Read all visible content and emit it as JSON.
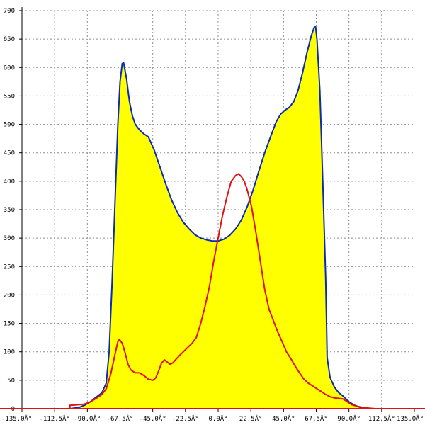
{
  "chart_data": {
    "type": "area",
    "title": "",
    "xlabel": "",
    "ylabel": "",
    "xlim": [
      -135,
      135
    ],
    "ylim": [
      0,
      700
    ],
    "grid": true,
    "x_ticks": [
      {
        "value": -135,
        "label": "-135.0Â°"
      },
      {
        "value": -112.5,
        "label": "-112.5Â°"
      },
      {
        "value": -90,
        "label": "-90.0Â°"
      },
      {
        "value": -67.5,
        "label": "-67.5Â°"
      },
      {
        "value": -45,
        "label": "-45.0Â°"
      },
      {
        "value": -22.5,
        "label": "-22.5Â°"
      },
      {
        "value": 0,
        "label": "0.0Â°"
      },
      {
        "value": 22.5,
        "label": "22.5Â°"
      },
      {
        "value": 45,
        "label": "45.0Â°"
      },
      {
        "value": 67.5,
        "label": "67.5Â°"
      },
      {
        "value": 90,
        "label": "90.0Â°"
      },
      {
        "value": 112.5,
        "label": "112.5Â°"
      },
      {
        "value": 135,
        "label": "135.0Â°"
      }
    ],
    "y_ticks": [
      {
        "value": 0,
        "label": "0"
      },
      {
        "value": 50,
        "label": "50"
      },
      {
        "value": 100,
        "label": "100"
      },
      {
        "value": 150,
        "label": "150"
      },
      {
        "value": 200,
        "label": "200"
      },
      {
        "value": 250,
        "label": "250"
      },
      {
        "value": 300,
        "label": "300"
      },
      {
        "value": 350,
        "label": "350"
      },
      {
        "value": 400,
        "label": "400"
      },
      {
        "value": 450,
        "label": "450"
      },
      {
        "value": 500,
        "label": "500"
      },
      {
        "value": 550,
        "label": "550"
      },
      {
        "value": 600,
        "label": "600"
      },
      {
        "value": 650,
        "label": "650"
      },
      {
        "value": 700,
        "label": "700"
      }
    ],
    "series": [
      {
        "color": "#0a2ab8",
        "fill": "#ffff00",
        "points": [
          [
            -135,
            0
          ],
          [
            -102,
            0
          ],
          [
            -96,
            2
          ],
          [
            -92,
            6
          ],
          [
            -88,
            12
          ],
          [
            -84,
            20
          ],
          [
            -80,
            28
          ],
          [
            -77,
            45
          ],
          [
            -75,
            100
          ],
          [
            -73,
            220
          ],
          [
            -71,
            360
          ],
          [
            -69,
            500
          ],
          [
            -67.5,
            575
          ],
          [
            -66,
            607
          ],
          [
            -65,
            608
          ],
          [
            -63,
            580
          ],
          [
            -61,
            540
          ],
          [
            -59,
            515
          ],
          [
            -57,
            500
          ],
          [
            -54,
            490
          ],
          [
            -51,
            483
          ],
          [
            -48,
            478
          ],
          [
            -44,
            455
          ],
          [
            -40,
            425
          ],
          [
            -36,
            395
          ],
          [
            -32,
            367
          ],
          [
            -28,
            345
          ],
          [
            -24,
            328
          ],
          [
            -20,
            316
          ],
          [
            -16,
            306
          ],
          [
            -12,
            300
          ],
          [
            -8,
            297
          ],
          [
            -4,
            295
          ],
          [
            0,
            295
          ],
          [
            4,
            298
          ],
          [
            8,
            305
          ],
          [
            12,
            316
          ],
          [
            16,
            332
          ],
          [
            20,
            355
          ],
          [
            24,
            384
          ],
          [
            28,
            418
          ],
          [
            32,
            450
          ],
          [
            36,
            478
          ],
          [
            40,
            505
          ],
          [
            43,
            518
          ],
          [
            46,
            525
          ],
          [
            49,
            530
          ],
          [
            52,
            540
          ],
          [
            55,
            560
          ],
          [
            58,
            590
          ],
          [
            61,
            625
          ],
          [
            64,
            655
          ],
          [
            66,
            670
          ],
          [
            67,
            672
          ],
          [
            68,
            650
          ],
          [
            70,
            560
          ],
          [
            72,
            400
          ],
          [
            74,
            230
          ],
          [
            75,
            90
          ],
          [
            77,
            55
          ],
          [
            80,
            38
          ],
          [
            83,
            28
          ],
          [
            86,
            22
          ],
          [
            90,
            12
          ],
          [
            94,
            6
          ],
          [
            98,
            2
          ],
          [
            102,
            1
          ],
          [
            106,
            0
          ],
          [
            135,
            0
          ]
        ]
      },
      {
        "color": "#e01010",
        "points": [
          [
            -135,
            0
          ],
          [
            -102,
            0
          ],
          [
            -102,
            6
          ],
          [
            -96,
            7
          ],
          [
            -92,
            8
          ],
          [
            -88,
            12
          ],
          [
            -84,
            18
          ],
          [
            -80,
            25
          ],
          [
            -77,
            35
          ],
          [
            -74,
            60
          ],
          [
            -71,
            95
          ],
          [
            -69,
            118
          ],
          [
            -68,
            122
          ],
          [
            -66,
            115
          ],
          [
            -64,
            98
          ],
          [
            -62,
            78
          ],
          [
            -60,
            68
          ],
          [
            -57,
            63
          ],
          [
            -54,
            63
          ],
          [
            -51,
            58
          ],
          [
            -48,
            52
          ],
          [
            -45,
            50
          ],
          [
            -43,
            54
          ],
          [
            -41,
            66
          ],
          [
            -39,
            80
          ],
          [
            -37,
            86
          ],
          [
            -35,
            82
          ],
          [
            -33,
            78
          ],
          [
            -31,
            81
          ],
          [
            -29,
            87
          ],
          [
            -26,
            95
          ],
          [
            -22,
            105
          ],
          [
            -18,
            115
          ],
          [
            -15,
            125
          ],
          [
            -12,
            150
          ],
          [
            -9,
            180
          ],
          [
            -6,
            215
          ],
          [
            -3,
            260
          ],
          [
            0,
            300
          ],
          [
            3,
            340
          ],
          [
            6,
            372
          ],
          [
            9,
            400
          ],
          [
            12,
            410
          ],
          [
            14,
            413
          ],
          [
            16,
            408
          ],
          [
            18,
            400
          ],
          [
            20,
            385
          ],
          [
            23,
            355
          ],
          [
            26,
            310
          ],
          [
            29,
            260
          ],
          [
            32,
            210
          ],
          [
            35,
            175
          ],
          [
            38,
            155
          ],
          [
            41,
            135
          ],
          [
            44,
            118
          ],
          [
            47,
            100
          ],
          [
            50,
            88
          ],
          [
            53,
            75
          ],
          [
            56,
            63
          ],
          [
            59,
            52
          ],
          [
            62,
            45
          ],
          [
            65,
            40
          ],
          [
            68,
            35
          ],
          [
            71,
            30
          ],
          [
            74,
            25
          ],
          [
            77,
            21
          ],
          [
            80,
            19
          ],
          [
            83,
            18
          ],
          [
            86,
            17
          ],
          [
            89,
            12
          ],
          [
            92,
            7
          ],
          [
            96,
            4
          ],
          [
            100,
            2
          ],
          [
            104,
            1
          ],
          [
            108,
            0
          ],
          [
            135,
            0
          ]
        ]
      }
    ]
  }
}
